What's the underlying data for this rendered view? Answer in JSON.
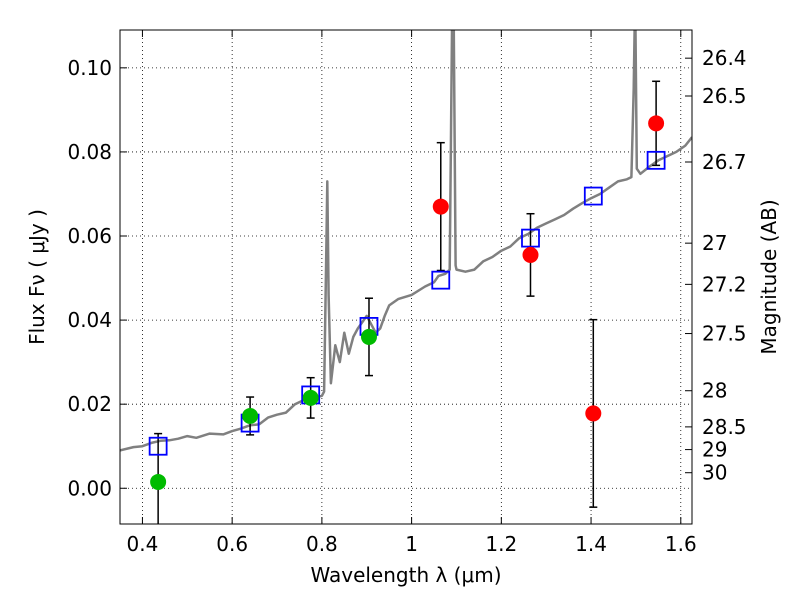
{
  "chart_data": {
    "type": "scatter",
    "xlabel": "Wavelength  λ (μm)",
    "ylabel": "Flux  Fν  ( μJy )",
    "ylabel_right": "Magnitude (AB)",
    "xlim": [
      0.35,
      1.625
    ],
    "ylim": [
      -0.0085,
      0.109
    ],
    "grid": true,
    "x_ticks": [
      {
        "value": 0.4,
        "label": "0.4"
      },
      {
        "value": 0.6,
        "label": "0.6"
      },
      {
        "value": 0.8,
        "label": "0.8"
      },
      {
        "value": 1.0,
        "label": "1"
      },
      {
        "value": 1.2,
        "label": "1.2"
      },
      {
        "value": 1.4,
        "label": "1.4"
      },
      {
        "value": 1.6,
        "label": "1.6"
      }
    ],
    "y_ticks": [
      {
        "value": 0.0,
        "label": "0.00"
      },
      {
        "value": 0.02,
        "label": "0.02"
      },
      {
        "value": 0.04,
        "label": "0.04"
      },
      {
        "value": 0.06,
        "label": "0.06"
      },
      {
        "value": 0.08,
        "label": "0.08"
      },
      {
        "value": 0.1,
        "label": "0.10"
      }
    ],
    "mag_ticks": [
      {
        "value": 0.1023,
        "label": "26.4"
      },
      {
        "value": 0.0933,
        "label": "26.5"
      },
      {
        "value": 0.0776,
        "label": "26.7"
      },
      {
        "value": 0.0583,
        "label": "27"
      },
      {
        "value": 0.0485,
        "label": "27.2"
      },
      {
        "value": 0.0368,
        "label": "27.5"
      },
      {
        "value": 0.0232,
        "label": "28"
      },
      {
        "value": 0.0146,
        "label": "28.5"
      },
      {
        "value": 0.0092,
        "label": "29"
      },
      {
        "value": 0.0037,
        "label": "30"
      }
    ],
    "series": [
      {
        "marker": "square-open",
        "color": "#0000ff",
        "points": [
          {
            "x": 0.435,
            "y": 0.01
          },
          {
            "x": 0.64,
            "y": 0.0155
          },
          {
            "x": 0.775,
            "y": 0.0222
          },
          {
            "x": 0.905,
            "y": 0.0385
          },
          {
            "x": 1.065,
            "y": 0.0495
          },
          {
            "x": 1.265,
            "y": 0.0595
          },
          {
            "x": 1.405,
            "y": 0.0695
          },
          {
            "x": 1.545,
            "y": 0.078
          }
        ]
      },
      {
        "marker": "circle",
        "color": "#00bb00",
        "points": [
          {
            "x": 0.435,
            "y": 0.0015,
            "yerr": 0.0115
          },
          {
            "x": 0.64,
            "y": 0.0172,
            "yerr": 0.0045
          },
          {
            "x": 0.775,
            "y": 0.0215,
            "yerr": 0.0048
          },
          {
            "x": 0.905,
            "y": 0.036,
            "yerr": 0.0092
          }
        ]
      },
      {
        "marker": "circle",
        "color": "#ff0000",
        "points": [
          {
            "x": 1.065,
            "y": 0.067,
            "yerr": 0.0152
          },
          {
            "x": 1.265,
            "y": 0.0555,
            "yerr": 0.0098
          },
          {
            "x": 1.405,
            "y": 0.0178,
            "yerr": 0.0223
          },
          {
            "x": 1.545,
            "y": 0.0868,
            "yerr": 0.01
          }
        ]
      }
    ],
    "spectrum": {
      "color": "#808080",
      "points": [
        [
          0.35,
          0.009
        ],
        [
          0.38,
          0.0098
        ],
        [
          0.4,
          0.01
        ],
        [
          0.42,
          0.0108
        ],
        [
          0.44,
          0.0113
        ],
        [
          0.46,
          0.0114
        ],
        [
          0.48,
          0.0118
        ],
        [
          0.5,
          0.0124
        ],
        [
          0.52,
          0.012
        ],
        [
          0.55,
          0.013
        ],
        [
          0.58,
          0.0128
        ],
        [
          0.6,
          0.0136
        ],
        [
          0.62,
          0.0142
        ],
        [
          0.64,
          0.015
        ],
        [
          0.66,
          0.0152
        ],
        [
          0.68,
          0.0168
        ],
        [
          0.7,
          0.0175
        ],
        [
          0.72,
          0.018
        ],
        [
          0.74,
          0.02
        ],
        [
          0.76,
          0.021
        ],
        [
          0.78,
          0.0214
        ],
        [
          0.8,
          0.022
        ],
        [
          0.805,
          0.023
        ],
        [
          0.81,
          0.058
        ],
        [
          0.812,
          0.073
        ],
        [
          0.815,
          0.046
        ],
        [
          0.82,
          0.025
        ],
        [
          0.83,
          0.034
        ],
        [
          0.84,
          0.03
        ],
        [
          0.85,
          0.037
        ],
        [
          0.86,
          0.032
        ],
        [
          0.87,
          0.036
        ],
        [
          0.88,
          0.038
        ],
        [
          0.89,
          0.0395
        ],
        [
          0.9,
          0.041
        ],
        [
          0.91,
          0.039
        ],
        [
          0.92,
          0.037
        ],
        [
          0.93,
          0.038
        ],
        [
          0.94,
          0.041
        ],
        [
          0.95,
          0.0435
        ],
        [
          0.97,
          0.045
        ],
        [
          1.0,
          0.046
        ],
        [
          1.03,
          0.048
        ],
        [
          1.05,
          0.049
        ],
        [
          1.06,
          0.0505
        ],
        [
          1.075,
          0.051
        ],
        [
          1.085,
          0.052
        ],
        [
          1.09,
          0.109
        ],
        [
          1.094,
          0.109
        ],
        [
          1.098,
          0.053
        ],
        [
          1.1,
          0.052
        ],
        [
          1.12,
          0.0515
        ],
        [
          1.14,
          0.052
        ],
        [
          1.16,
          0.054
        ],
        [
          1.18,
          0.055
        ],
        [
          1.2,
          0.0565
        ],
        [
          1.22,
          0.0575
        ],
        [
          1.24,
          0.0595
        ],
        [
          1.26,
          0.0605
        ],
        [
          1.28,
          0.062
        ],
        [
          1.3,
          0.063
        ],
        [
          1.32,
          0.064
        ],
        [
          1.34,
          0.065
        ],
        [
          1.36,
          0.0665
        ],
        [
          1.38,
          0.0678
        ],
        [
          1.4,
          0.069
        ],
        [
          1.42,
          0.07
        ],
        [
          1.44,
          0.0715
        ],
        [
          1.46,
          0.073
        ],
        [
          1.48,
          0.0735
        ],
        [
          1.49,
          0.074
        ],
        [
          1.495,
          0.095
        ],
        [
          1.497,
          0.109
        ],
        [
          1.499,
          0.109
        ],
        [
          1.502,
          0.076
        ],
        [
          1.51,
          0.0748
        ],
        [
          1.53,
          0.0765
        ],
        [
          1.55,
          0.078
        ],
        [
          1.57,
          0.079
        ],
        [
          1.59,
          0.08
        ],
        [
          1.61,
          0.0815
        ],
        [
          1.625,
          0.0835
        ]
      ]
    }
  }
}
